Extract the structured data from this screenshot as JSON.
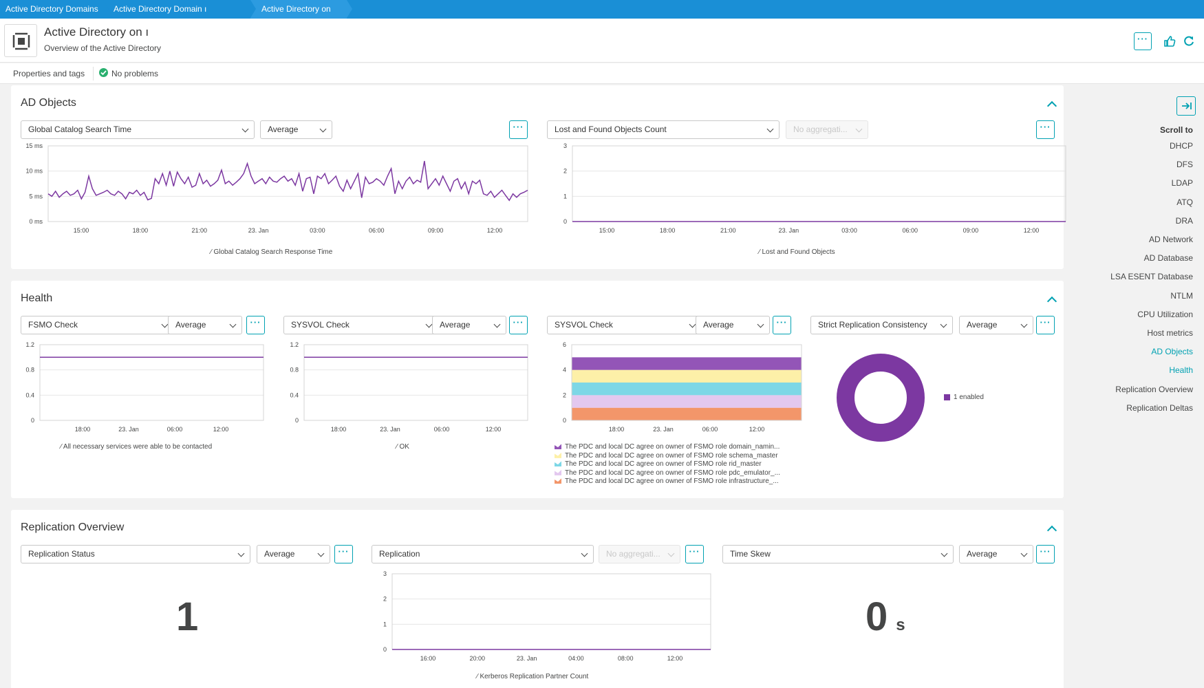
{
  "breadcrumb": [
    "Active Directory Domains",
    "Active Directory Domain ı",
    "Active Directory on"
  ],
  "header": {
    "title": "Active Directory on ı",
    "subtitle": "Overview of the Active Directory"
  },
  "subbar": {
    "properties_label": "Properties and tags",
    "status_label": "No problems"
  },
  "colors": {
    "accent": "#00a1b2",
    "breadcrumb_bg": "#1a8fd6",
    "series": "#7c38a1",
    "ok": "#2ab06f"
  },
  "scroll_nav": {
    "title": "Scroll to",
    "items": [
      "DHCP",
      "DFS",
      "LDAP",
      "ATQ",
      "DRA",
      "AD Network",
      "AD Database",
      "LSA ESENT Database",
      "NTLM",
      "CPU Utilization",
      "Host metrics",
      "AD Objects",
      "Health",
      "Replication Overview",
      "Replication Deltas"
    ]
  },
  "sections": {
    "ad_objects": {
      "title": "AD Objects",
      "tile1": {
        "metric": "Global Catalog Search Time",
        "aggregation": "Average"
      },
      "tile2": {
        "metric": "Lost and Found Objects Count",
        "aggregation": "No aggregati..."
      }
    },
    "health": {
      "title": "Health",
      "tile1": {
        "metric": "FSMO Check",
        "aggregation": "Average"
      },
      "tile2": {
        "metric": "SYSVOL Check",
        "aggregation": "Average"
      },
      "tile3": {
        "metric": "SYSVOL Check",
        "aggregation": "Average"
      },
      "tile4": {
        "metric": "Strict Replication Consistency",
        "aggregation": "Average"
      }
    },
    "replication_overview": {
      "title": "Replication Overview",
      "tile1": {
        "metric": "Replication Status",
        "aggregation": "Average",
        "value": "1"
      },
      "tile2": {
        "metric": "Replication",
        "aggregation": "No aggregati..."
      },
      "tile3": {
        "metric": "Time Skew",
        "aggregation": "Average",
        "value": "0",
        "unit": "s"
      }
    }
  },
  "chart_data": [
    {
      "id": "global_catalog",
      "type": "line",
      "x_labels": [
        "15:00",
        "18:00",
        "21:00",
        "23. Jan",
        "03:00",
        "06:00",
        "09:00",
        "12:00"
      ],
      "y_ticks": [
        "0 ms",
        "5 ms",
        "10 ms",
        "15 ms"
      ],
      "ylim": [
        0,
        15
      ],
      "series": [
        {
          "name": "Global Catalog Search Response Time",
          "color": "#7c38a1",
          "values": [
            5.5,
            5,
            6,
            4.8,
            5.5,
            6,
            5.2,
            5.5,
            6.2,
            4.5,
            5.8,
            9,
            6.5,
            5.2,
            5.5,
            5.8,
            6.2,
            5.5,
            5.2,
            6,
            5.5,
            4.5,
            5.8,
            5.5,
            6.2,
            5.2,
            5.8,
            4.3,
            4.6,
            8.5,
            7.5,
            9.5,
            7.2,
            10,
            7,
            9.8,
            8.5,
            7.5,
            8.8,
            6.8,
            7.2,
            9.5,
            7.5,
            8.2,
            7,
            7.5,
            8.2,
            10.2,
            7.5,
            8,
            7.2,
            7.8,
            8.5,
            9.5,
            11.5,
            9,
            7.5,
            8,
            8.5,
            7.5,
            8.8,
            8,
            7.8,
            8.5,
            9,
            8,
            8.5,
            7.2,
            9.5,
            6,
            8.5,
            8.8,
            5.5,
            9,
            8.5,
            9.5,
            7.5,
            8.2,
            9,
            7,
            6,
            8.2,
            6.5,
            8,
            9.5,
            4.7,
            8.8,
            7.5,
            7.8,
            8.5,
            8,
            7.2,
            9,
            10.5,
            5.5,
            8,
            6.5,
            8,
            8.8,
            7.5,
            8.2,
            7.8,
            12,
            6.5,
            7.5,
            8.5,
            7.2,
            9,
            7.5,
            6,
            8,
            8.5,
            6.5,
            7.8,
            5.5,
            8,
            7.5,
            8.2,
            5.5,
            5.2,
            6,
            4.8,
            5.5,
            6.2,
            5.2,
            4.2,
            5.5,
            4.8,
            5.5,
            5.8,
            6.2
          ]
        }
      ]
    },
    {
      "id": "lost_found",
      "type": "line",
      "x_labels": [
        "15:00",
        "18:00",
        "21:00",
        "23. Jan",
        "03:00",
        "06:00",
        "09:00",
        "12:00"
      ],
      "y_ticks": [
        "0",
        "1",
        "2",
        "3"
      ],
      "ylim": [
        0,
        3
      ],
      "series": [
        {
          "name": "Lost and Found Objects",
          "color": "#7c38a1",
          "values": [
            0,
            0
          ]
        }
      ]
    },
    {
      "id": "fsmo_check",
      "type": "line",
      "x_labels": [
        "18:00",
        "23. Jan",
        "06:00",
        "12:00"
      ],
      "y_ticks": [
        "0",
        "0.4",
        "0.8",
        "1.2"
      ],
      "ylim": [
        0,
        1.2
      ],
      "series": [
        {
          "name": "All necessary services were able to be contacted",
          "color": "#7c38a1",
          "values": [
            1,
            1
          ]
        }
      ]
    },
    {
      "id": "sysvol_ok",
      "type": "line",
      "x_labels": [
        "18:00",
        "23. Jan",
        "06:00",
        "12:00"
      ],
      "y_ticks": [
        "0",
        "0.4",
        "0.8",
        "1.2"
      ],
      "ylim": [
        0,
        1.2
      ],
      "series": [
        {
          "name": "OK",
          "color": "#7c38a1",
          "values": [
            1,
            1
          ]
        }
      ]
    },
    {
      "id": "sysvol_stacked",
      "type": "area",
      "x_labels": [
        "18:00",
        "23. Jan",
        "06:00",
        "12:00"
      ],
      "y_ticks": [
        "0",
        "2",
        "4",
        "6"
      ],
      "ylim": [
        0,
        6
      ],
      "series": [
        {
          "name": "The PDC and local DC agree on owner of FSMO role infrastructure_...",
          "color": "#f3966a",
          "value": 1
        },
        {
          "name": "The PDC and local DC agree on owner of FSMO role pdc_emulator_...",
          "color": "#e3c8ef",
          "value": 1
        },
        {
          "name": "The PDC and local DC agree on owner of FSMO role rid_master",
          "color": "#7dd7e6",
          "value": 1
        },
        {
          "name": "The PDC and local DC agree on owner of FSMO role schema_master",
          "color": "#fdf0a8",
          "value": 1
        },
        {
          "name": "The PDC and local DC agree on owner of FSMO role domain_namin...",
          "color": "#9355b7",
          "value": 1
        }
      ]
    },
    {
      "id": "strict_replication",
      "type": "pie",
      "series": [
        {
          "name": "1 enabled",
          "color": "#7c38a1",
          "value": 1
        }
      ]
    },
    {
      "id": "kerberos",
      "type": "line",
      "x_labels": [
        "16:00",
        "20:00",
        "23. Jan",
        "04:00",
        "08:00",
        "12:00"
      ],
      "y_ticks": [
        "0",
        "1",
        "2",
        "3"
      ],
      "ylim": [
        0,
        3
      ],
      "series": [
        {
          "name": "Kerberos Replication Partner Count",
          "color": "#7c38a1",
          "values": [
            0,
            0
          ]
        }
      ]
    }
  ]
}
